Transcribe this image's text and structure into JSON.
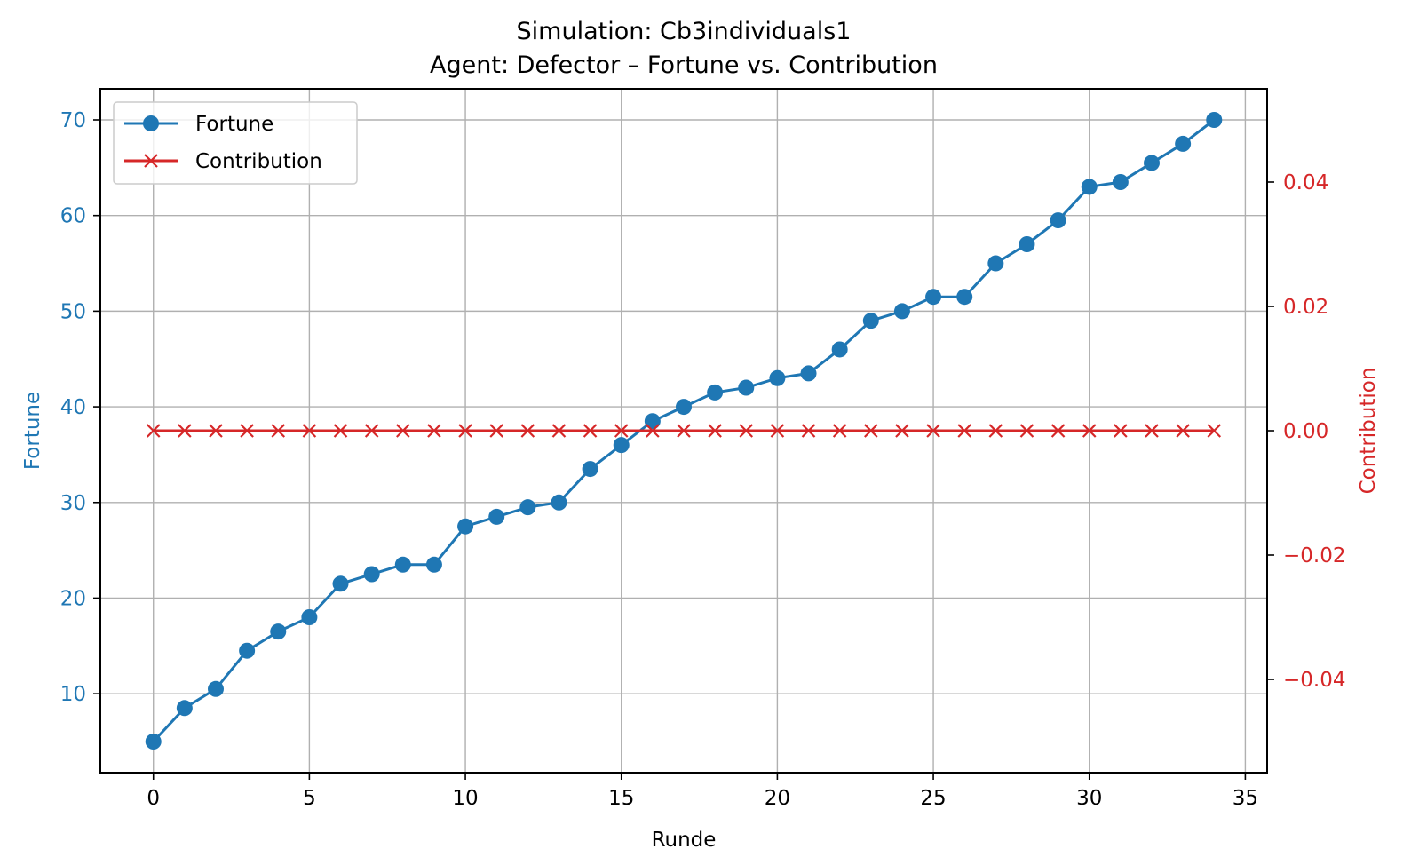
{
  "chart_data": {
    "type": "line",
    "title": "Simulation: Cb3individuals1",
    "subtitle": "Agent: Defector – Fortune vs. Contribution",
    "xlabel": "Runde",
    "ylabel_left": "Fortune",
    "ylabel_right": "Contribution",
    "xlim": [
      -1.7,
      35.7
    ],
    "ylim_left": [
      1.75,
      73.25
    ],
    "ylim_right": [
      -0.055,
      0.055
    ],
    "x_ticks": [
      0,
      5,
      10,
      15,
      20,
      25,
      30,
      35
    ],
    "y_left_ticks": [
      10,
      20,
      30,
      40,
      50,
      60,
      70
    ],
    "y_right_ticks": [
      -0.04,
      -0.02,
      0.0,
      0.02,
      0.04
    ],
    "y_right_tick_labels": [
      "−0.04",
      "−0.02",
      "0.00",
      "0.02",
      "0.04"
    ],
    "grid": true,
    "legend_position": "upper-left",
    "colors": {
      "left": "#1f77b4",
      "right": "#d62728"
    },
    "x": [
      0,
      1,
      2,
      3,
      4,
      5,
      6,
      7,
      8,
      9,
      10,
      11,
      12,
      13,
      14,
      15,
      16,
      17,
      18,
      19,
      20,
      21,
      22,
      23,
      24,
      25,
      26,
      27,
      28,
      29,
      30,
      31,
      32,
      33,
      34
    ],
    "series": [
      {
        "name": "Fortune",
        "axis": "left",
        "color": "#1f77b4",
        "marker": "circle",
        "values": [
          5,
          8.5,
          10.5,
          14.5,
          16.5,
          18,
          21.5,
          22.5,
          23.5,
          23.5,
          27.5,
          28.5,
          29.5,
          30,
          33.5,
          36,
          38.5,
          40,
          41.5,
          42,
          43,
          43.5,
          46,
          49,
          50,
          51.5,
          51.5,
          55,
          57,
          59.5,
          63,
          63.5,
          65.5,
          67.5,
          70
        ]
      },
      {
        "name": "Contribution",
        "axis": "right",
        "color": "#d62728",
        "marker": "x",
        "values": [
          0,
          0,
          0,
          0,
          0,
          0,
          0,
          0,
          0,
          0,
          0,
          0,
          0,
          0,
          0,
          0,
          0,
          0,
          0,
          0,
          0,
          0,
          0,
          0,
          0,
          0,
          0,
          0,
          0,
          0,
          0,
          0,
          0,
          0,
          0
        ]
      }
    ]
  }
}
